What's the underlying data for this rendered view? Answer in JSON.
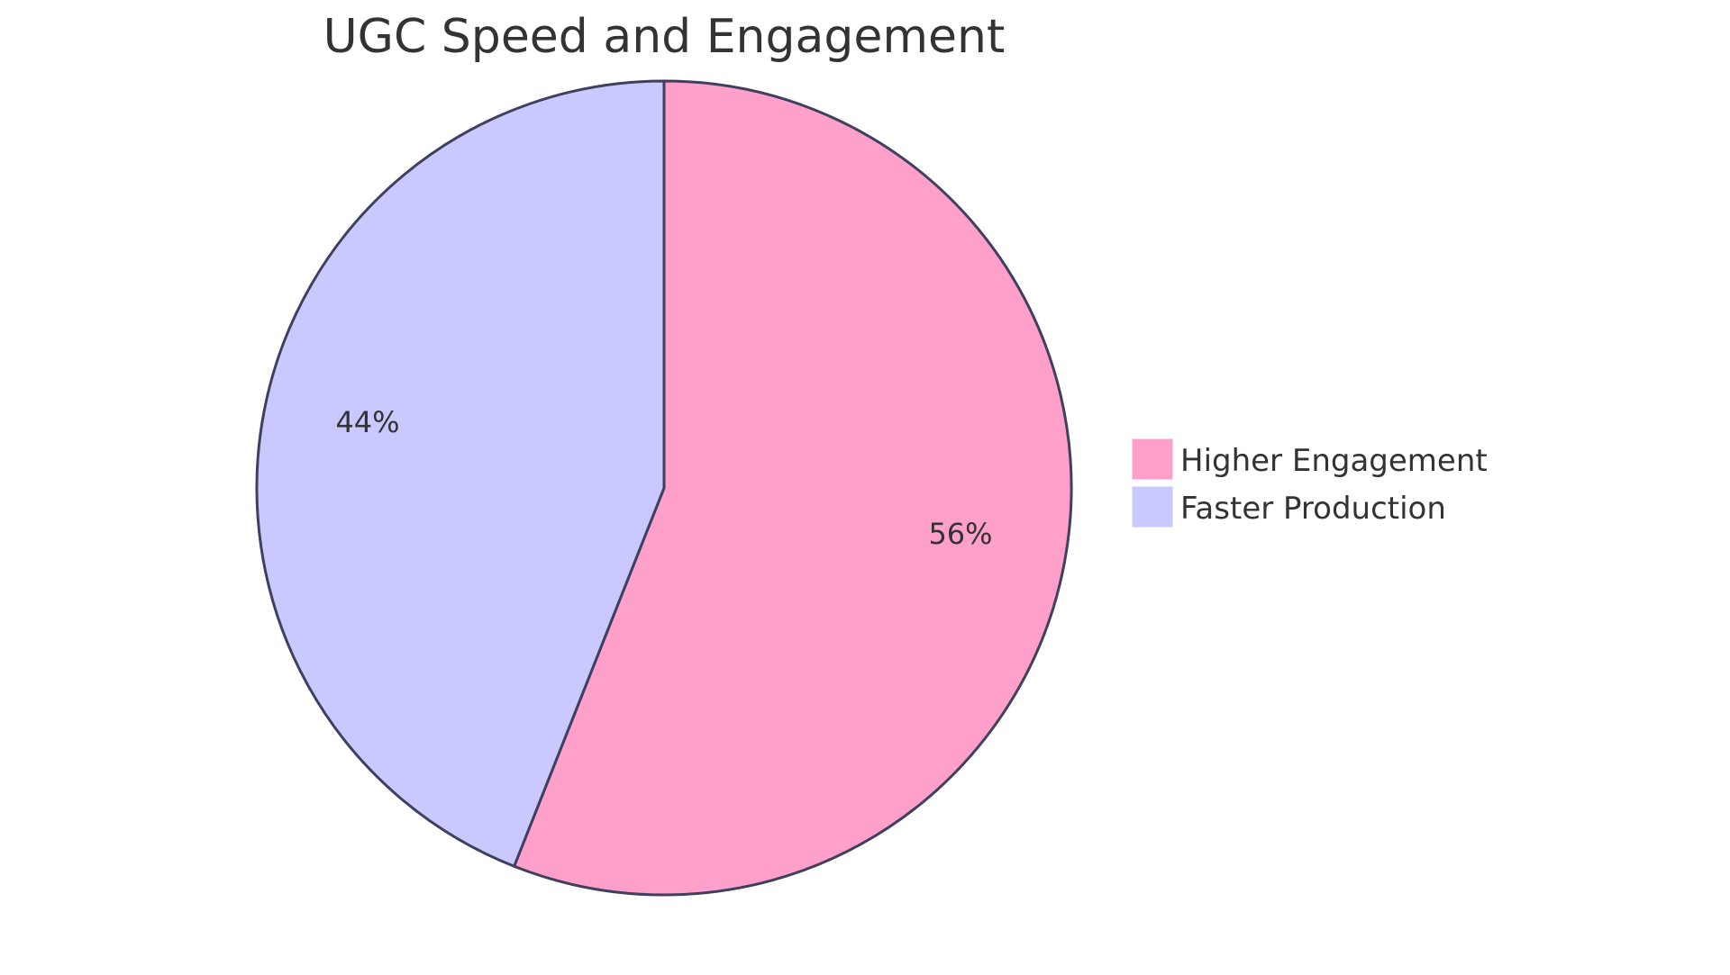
{
  "chart_data": {
    "type": "pie",
    "title": "UGC Speed and Engagement",
    "categories": [
      "Higher Engagement",
      "Faster Production"
    ],
    "values": [
      56,
      44
    ],
    "labels": [
      "56%",
      "44%"
    ],
    "colors": [
      "#FFA0CB",
      "#C9C9FF"
    ],
    "stroke_color": "#3F3F5F",
    "legend_position": "right"
  },
  "title": "UGC Speed and Engagement",
  "slices": [
    {
      "name": "Higher Engagement",
      "label": "56%",
      "color": "#FFA0CB"
    },
    {
      "name": "Faster Production",
      "label": "44%",
      "color": "#C9C9FF"
    }
  ],
  "legend": [
    {
      "label": "Higher Engagement",
      "color": "#FFA0CB"
    },
    {
      "label": "Faster Production",
      "color": "#C9C9FF"
    }
  ]
}
